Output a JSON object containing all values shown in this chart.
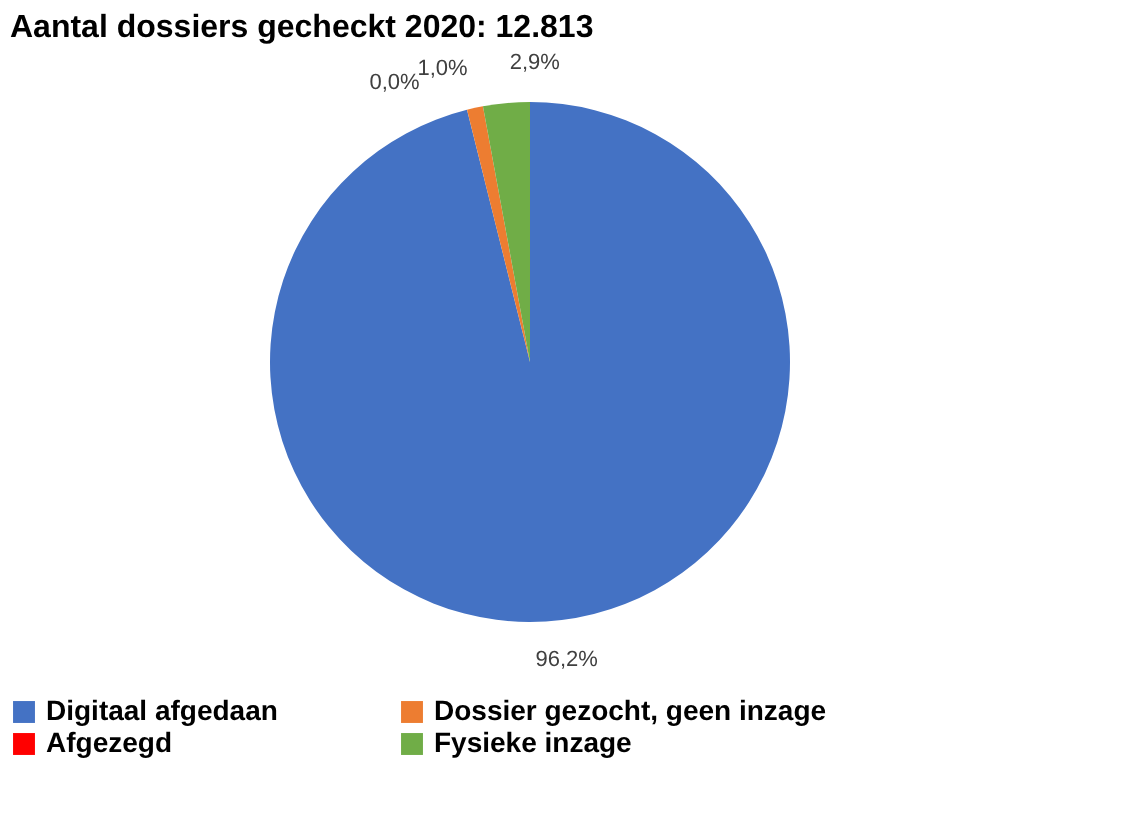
{
  "chart_data": {
    "type": "pie",
    "title": "Aantal dossiers gecheckt 2020:  12.813",
    "categories": [
      "Digitaal afgedaan",
      "Dossier gezocht, geen inzage",
      "Afgezegd",
      "Fysieke inzage"
    ],
    "values": [
      96.2,
      1.0,
      0.0,
      2.9
    ],
    "value_labels": [
      "96,2%",
      "1,0%",
      "0,0%",
      "2,9%"
    ],
    "colors": [
      "#4472c4",
      "#ed7d31",
      "#ff0000",
      "#70ad47"
    ],
    "legend": "bottom"
  }
}
